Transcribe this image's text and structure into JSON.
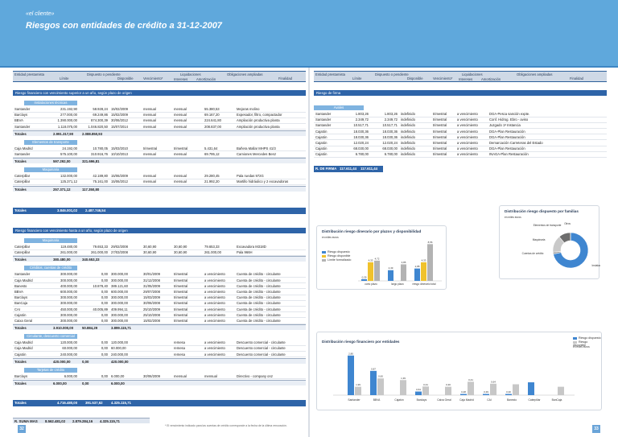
{
  "header": {
    "client": "«el cliente»",
    "title": "Riesgos con entidades de crédito a 31-12-2007"
  },
  "colors": {
    "banner": "#5fa8dc",
    "section": "#2e64a8",
    "subsection": "#7fb3e0",
    "dispuesto": "#3f86d0",
    "disponible": "#f0c22c",
    "limite": "#b3b3b3"
  },
  "left": {
    "headers": {
      "entidad": "Entidad prestamista",
      "limite": "Límite",
      "dispuesto": "Dispuesto o pendiente",
      "disponible": "Disponible",
      "vencimiento": "Vencimiento*",
      "liquidaciones": "Liquidaciones",
      "intereses": "Intereses",
      "amortizacion": "Amortización",
      "obligaciones": "Obligaciones ampliadas",
      "finalidad": "Finalidad"
    },
    "section1": "Riesgo financiero con vencimiento superior a un año, según plazo de origen",
    "groups1": [
      {
        "name": "Instalaciones técnicas",
        "rows": [
          [
            "Santander",
            "231.192,90",
            "58.928,24",
            "15/02/2009",
            "mensual",
            "mensual",
            "55.380,53",
            "Mejoras molino"
          ],
          [
            "Barclays",
            "277.000,00",
            "69.249,86",
            "15/02/2009",
            "mensual",
            "mensual",
            "69.167,20",
            "Expesador, filtro, compactador"
          ],
          [
            "BBVA",
            "1.390.000,00",
            "874.300,39",
            "30/06/2012",
            "mensual",
            "mensual",
            "224.641,80",
            "Ampliación productiva planta"
          ],
          [
            "Santander",
            "1.118.075,00",
            "1.046.820,50",
            "15/07/2014",
            "mensual",
            "mensual",
            "208.837,00",
            "Ampliación productiva planta"
          ]
        ],
        "total": [
          "2.991.317,90",
          "2.088.850,93"
        ]
      },
      {
        "name": "Elementos de transporte",
        "rows": [
          [
            "Caja Madrid",
            "24.192,00",
            "10.780,05",
            "15/03/2010",
            "trimestral",
            "trimestral",
            "5.431,64",
            "Bañera Mallar MHPS 41/3"
          ],
          [
            "Santander",
            "575.100,00",
            "310.916,76",
            "10/10/2013",
            "mensual",
            "mensual",
            "69.795,12",
            "Camiones Mercedes Benz"
          ]
        ],
        "total": [
          "597.292,00",
          "321.696,81"
        ]
      },
      {
        "name": "Maquinaria",
        "rows": [
          [
            "Caterpillar",
            "132.000,00",
            "42.189,80",
            "15/06/2009",
            "mensual",
            "mensual",
            "29.280,45",
            "Pala ruedas 972G"
          ],
          [
            "Caterpillar",
            "125.371,12",
            "75.161,00",
            "15/06/2012",
            "mensual",
            "mensual",
            "21.992,20",
            "Martillo hidráulico y 2 excavadoras"
          ]
        ],
        "total": [
          "257.371,12",
          "117.350,80"
        ]
      }
    ],
    "total1": [
      "3.846.001,02",
      "2.487.746,54"
    ],
    "section2": "Riesgo financiero con vencimiento hasta a un año, según plazo de origen",
    "groups2": [
      {
        "name": "Maquinaria",
        "rows": [
          [
            "Caterpillar",
            "119.480,00",
            "79.653,33",
            "29/02/2008",
            "30,60,90",
            "30,60,90",
            "79.653,33",
            "Excavadora M318D"
          ],
          [
            "Caterpillar",
            "261.000,00",
            "261.000,00",
            "27/03/2008",
            "30,60,90",
            "30,60,90",
            "261.000,00",
            "Pala 966H"
          ]
        ],
        "total": [
          "380.480,00",
          "340.653,33"
        ]
      },
      {
        "name": "Créditos, cuentas de crédito",
        "rows": [
          [
            "Santander",
            "300.000,00",
            "0,00",
            "300.000,00",
            "30/01/2009",
            "trimestral",
            "a vencimiento",
            "Cuenta de crédito - circulante"
          ],
          [
            "Caja Madrid",
            "300.000,00",
            "0,00",
            "300.000,00",
            "31/12/2008",
            "trimestral",
            "a vencimiento",
            "Cuenta de crédito - circulante"
          ],
          [
            "Banesto",
            "400.000,00",
            "10.878,40",
            "389.121,60",
            "31/05/2009",
            "trimestral",
            "a vencimiento",
            "Cuenta de crédito - circulante"
          ],
          [
            "BBVA",
            "600.000,00",
            "0,00",
            "600.000,00",
            "29/07/2008",
            "trimestral",
            "a vencimiento",
            "Cuenta de crédito - circulante"
          ],
          [
            "Barclays",
            "300.000,00",
            "0,00",
            "300.000,00",
            "15/03/2009",
            "trimestral",
            "a vencimiento",
            "Cuenta de crédito - circulante"
          ],
          [
            "BanCaja",
            "300.000,00",
            "0,00",
            "300.000,00",
            "30/06/2008",
            "trimestral",
            "a vencimiento",
            "Cuenta de crédito - circulante"
          ],
          [
            "CAI",
            "450.000,00",
            "40.005,89",
            "409.994,11",
            "25/10/2009",
            "trimestral",
            "a vencimiento",
            "Cuenta de crédito - circulante"
          ],
          [
            "Cajatón",
            "300.000,00",
            "0,00",
            "300.000,00",
            "25/10/2008",
            "trimestral",
            "a vencimiento",
            "Cuenta de crédito - circulante"
          ],
          [
            "Caixa Geral",
            "300.000,00",
            "0,00",
            "300.000,00",
            "15/02/2008",
            "trimestral",
            "a vencimiento",
            "Cuenta de crédito - circulante"
          ]
        ],
        "total": [
          "3.910.000,00",
          "50.884,29",
          "3.899.115,71"
        ]
      },
      {
        "name": "Circulante, descuento comercial",
        "rows": [
          [
            "Caja Madrid",
            "120.000,00",
            "0,00",
            "120.000,00",
            "",
            "remesa",
            "a vencimiento",
            "Descuento comercial - circulante"
          ],
          [
            "Caja Madrid",
            "60.000,00",
            "0,00",
            "60.000,00",
            "",
            "remesa",
            "a vencimiento",
            "Descuento comercial - circulante"
          ],
          [
            "Cajatón",
            "240.000,00",
            "0,00",
            "240.000,00",
            "",
            "remesa",
            "a vencimiento",
            "Descuento comercial - circulante"
          ]
        ],
        "total": [
          "420.000,00",
          "0,00",
          "420.000,00"
        ]
      },
      {
        "name": "Tarjetas de crédito",
        "rows": [
          [
            "Barclays",
            "6.000,00",
            "0,00",
            "6.000,00",
            "30/06/2009",
            "mensual",
            "mensual",
            "Directivo - company onz"
          ]
        ],
        "total": [
          "6.000,00",
          "0,00",
          "6.000,00"
        ]
      }
    ],
    "total2": [
      "4.716.480,00",
      "391.537,62",
      "4.325.115,71"
    ],
    "grandtotal": [
      "8.562.481,02",
      "2.879.284,16",
      "4.325.115,71"
    ],
    "grandlabel": "R. SUMA MAS",
    "totals_label": "Totales",
    "totals_all_label": "Totales",
    "footnote": "* El vencimiento indicado para las cuentas de crédito corresponde a la fecha de la última renovación.",
    "page": "32"
  },
  "right": {
    "section": "Riesgo de firma",
    "group": "Avales",
    "rows": [
      [
        "Santander",
        "1.803,26",
        "1.803,26",
        "indefinido",
        "trimestral",
        "a vencimiento",
        "DGA-Pesca sanción expte."
      ],
      [
        "Santander",
        "2.349,72",
        "2.349,72",
        "indefinido",
        "trimestral",
        "a vencimiento",
        "Conf. Hidrog. Ebro - aviso"
      ],
      [
        "Santander",
        "10.517,71",
        "10.517,71",
        "indefinido",
        "trimestral",
        "a vencimiento",
        "Juzgado 1ª Instancia"
      ],
      [
        "Cajatón",
        "18.030,36",
        "18.030,36",
        "indefinido",
        "trimestral",
        "a vencimiento",
        "DGA-Plan Restauración"
      ],
      [
        "Cajatón",
        "18.030,36",
        "18.030,36",
        "indefinido",
        "trimestral",
        "a vencimiento",
        "DGA-Plan Restauración"
      ],
      [
        "Cajatón",
        "12.020,24",
        "12.020,24",
        "indefinido",
        "trimestral",
        "a vencimiento",
        "Demarcación Carreteras del Estado"
      ],
      [
        "Cajatón",
        "68.030,00",
        "68.030,00",
        "indefinido",
        "trimestral",
        "a vencimiento",
        "DGA-Plan Restauración"
      ],
      [
        "Cajatón",
        "6.780,00",
        "6.780,00",
        "indefinido",
        "trimestral",
        "a vencimiento",
        "INAGA-Plan Restauración"
      ]
    ],
    "total_label": "R. DE FIRMA",
    "total": [
      "117.611,44",
      "117.611,44"
    ],
    "page": "33"
  },
  "chart_data": [
    {
      "type": "pie",
      "title": "Distribución riesgo dispuesto por familias",
      "unit": "en miles euros",
      "labels": [
        "Instalaciones técnicas",
        "Cuentas de crédito",
        "Maquinaria",
        "Elementos de transporte",
        "Otros"
      ],
      "values": [
        2089,
        51,
        458,
        322,
        0.4
      ]
    },
    {
      "type": "bar",
      "title": "Distribución riesgo dinerario por plazos y disponibilidad",
      "unit": "en miles euros",
      "categories": [
        "corto plazo",
        "largo plazo",
        "riesgo dinerario total"
      ],
      "series": [
        {
          "name": "Riesgo dispuesto",
          "values": [
            0.4,
            2.49,
            2.88
          ]
        },
        {
          "name": "Riesgo disponible",
          "values": [
            4.33,
            0,
            4.33
          ]
        },
        {
          "name": "Límite formalizado",
          "values": [
            4.72,
            3.85,
            8.56
          ]
        }
      ],
      "labels": [
        "0,39",
        "4,33",
        "4,72",
        "2,49",
        "3,85",
        "2,88",
        "4,33",
        "8,56"
      ]
    },
    {
      "type": "bar",
      "title": "Distribución riesgo financiero por entidades",
      "unit": "en miles euros",
      "categories": [
        "Santander",
        "BBVA",
        "Cajatón",
        "Barclays",
        "Caixa Geral",
        "Caja Madrid",
        "CAI",
        "Banesto",
        "Caterpillar",
        "BanCaja"
      ],
      "series": [
        {
          "name": "Riesgo dispuesto",
          "values": [
            1.42,
            0.87,
            0,
            0.13,
            0,
            0.01,
            0.04,
            0.01,
            0.46,
            0
          ]
        },
        {
          "name": "Riesgo disponible",
          "values": [
            0.3,
            0.6,
            0.54,
            0.31,
            0.3,
            0.48,
            0.41,
            0.39,
            0,
            0.3
          ]
        }
      ],
      "labels": [
        "2,80",
        "1,99",
        "0,87",
        "0,60",
        "1,39",
        "0,54",
        "0,31",
        "0,30",
        "0,48",
        "0,41",
        "0,39",
        "0,64",
        "0,30"
      ]
    }
  ]
}
